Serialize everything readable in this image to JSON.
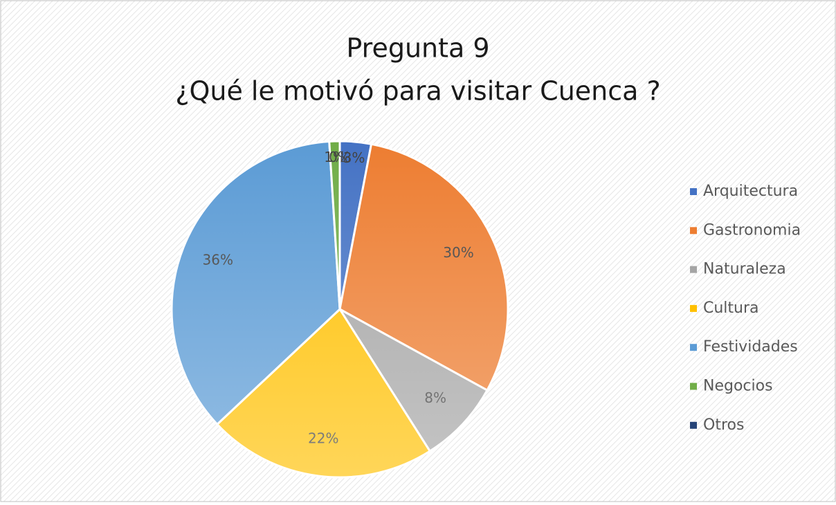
{
  "chart_data": {
    "type": "pie",
    "title": [
      "Pregunta 9",
      "¿Qué le motivó para visitar Cuenca ?"
    ],
    "categories": [
      "Arquitectura",
      "Gastronomia",
      "Naturaleza",
      "Cultura",
      "Festividades",
      "Negocios",
      "Otros"
    ],
    "values": [
      3,
      30,
      8,
      22,
      36,
      1,
      0
    ],
    "value_labels": [
      "3%",
      "30%",
      "8%",
      "22%",
      "36%",
      "1%",
      "0%"
    ],
    "colors": [
      "#4472c4",
      "#ed7d31",
      "#a5a5a5",
      "#ffc000",
      "#5b9bd5",
      "#70ad47",
      "#264478"
    ],
    "legend": "right"
  }
}
